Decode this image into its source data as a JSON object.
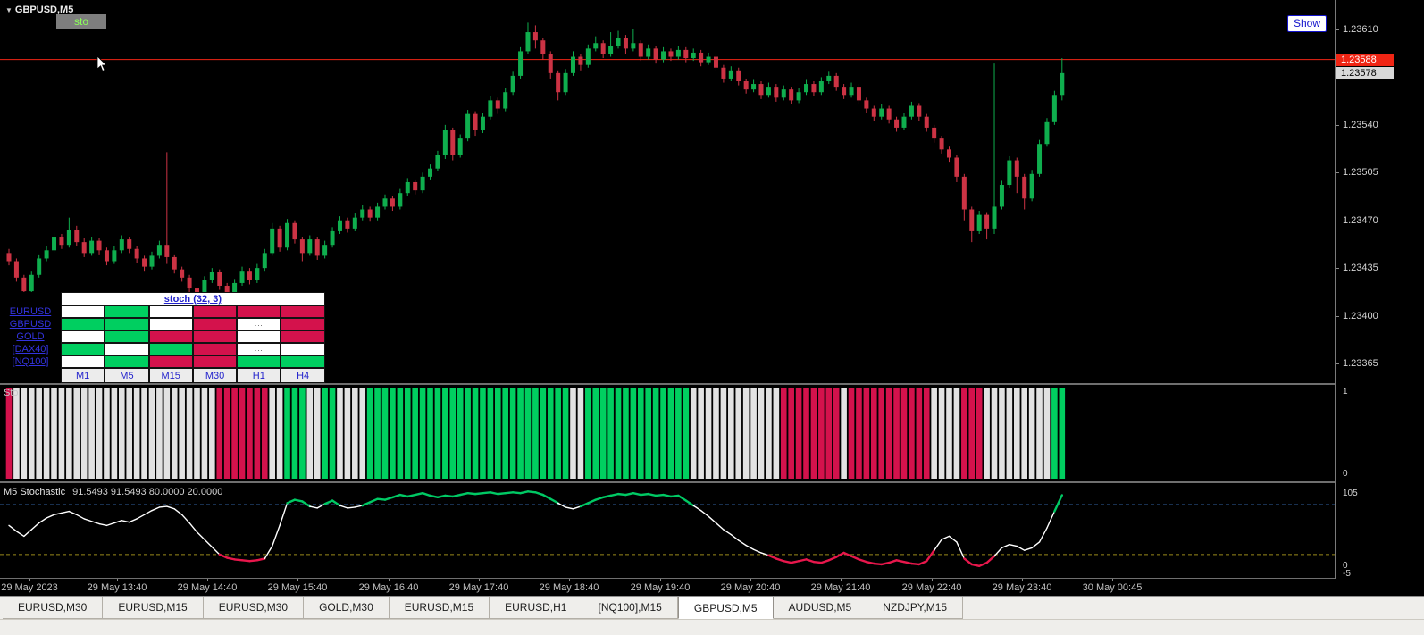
{
  "colors": {
    "bull": "#0fae4e",
    "bear": "#cc3344",
    "matrix_green": "#00cf60",
    "matrix_red": "#d4124c",
    "hist_white": "#e2e2e2",
    "line_green": "#00c964",
    "line_red": "#e8174c",
    "line_white": "#ffffff",
    "level_upper": "#3f7fd6",
    "level_lower": "#9a8a1a",
    "bid_line": "#f02514",
    "link_blue": "#2222cc"
  },
  "window": {
    "symbol_title": "GBPUSD,M5",
    "sto_button": "sto",
    "show_button": "Show"
  },
  "icons": {
    "dropdown_triangle": "▼"
  },
  "price_scale": {
    "bid_badge": "1.23588",
    "last_badge": "1.23578"
  },
  "matrix": {
    "title": "stoch (32, 3)",
    "row_labels": [
      "EURUSD",
      "GBPUSD",
      "GOLD",
      "[DAX40]",
      "[NQ100]"
    ],
    "col_labels": [
      "M1",
      "M5",
      "M15",
      "M30",
      "H1",
      "H4"
    ],
    "cells": [
      [
        "w",
        "g",
        "w",
        "r",
        "r",
        "r"
      ],
      [
        "g",
        "g",
        "w",
        "r",
        "w",
        "r"
      ],
      [
        "w",
        "g",
        "r",
        "r",
        "w",
        "r"
      ],
      [
        "g",
        "w",
        "g",
        "r",
        "w",
        "w"
      ],
      [
        "w",
        "g",
        "r",
        "r",
        "g",
        "g"
      ]
    ],
    "dots": [
      [
        1,
        4
      ],
      [
        2,
        4
      ],
      [
        3,
        4
      ]
    ],
    "dots_text": "..."
  },
  "subwindow1": {
    "label": "Sto",
    "scale": {
      "top": "1",
      "bottom": "0"
    }
  },
  "subwindow2": {
    "label": "M5 Stochastic",
    "values": "91.5493 91.5493 80.0000 20.0000",
    "scale": {
      "top": "105",
      "zero": "0",
      "bottom": "-5"
    }
  },
  "time_axis": [
    "29 May 2023",
    "29 May 13:40",
    "29 May 14:40",
    "29 May 15:40",
    "29 May 16:40",
    "29 May 17:40",
    "29 May 18:40",
    "29 May 19:40",
    "29 May 20:40",
    "29 May 21:40",
    "29 May 22:40",
    "29 May 23:40",
    "30 May 00:45"
  ],
  "tabs": {
    "items": [
      "EURUSD,M30",
      "EURUSD,M15",
      "EURUSD,M30",
      "GOLD,M30",
      "EURUSD,M15",
      "EURUSD,H1",
      "[NQ100],M15",
      "GBPUSD,M5",
      "AUDUSD,M5",
      "NZDJPY,M15"
    ],
    "active_index": 7
  },
  "chart_data": {
    "type": "candlestick",
    "symbol": "GBPUSD",
    "timeframe": "M5",
    "price_axis": {
      "base": 1.23,
      "ticks": [
        1.2361,
        1.23575,
        1.2354,
        1.23505,
        1.2347,
        1.23435,
        1.234,
        1.23365
      ]
    },
    "bid_line": 1.23588,
    "last_price": 1.23578,
    "candles_pips": [
      [
        44.6,
        44.9,
        43.7,
        44.0
      ],
      [
        44.0,
        44.2,
        42.5,
        42.8
      ],
      [
        42.8,
        43.0,
        41.2,
        41.8
      ],
      [
        41.8,
        43.3,
        41.6,
        43.0
      ],
      [
        43.0,
        44.5,
        42.8,
        44.2
      ],
      [
        44.2,
        45.1,
        44.0,
        44.8
      ],
      [
        44.8,
        46.1,
        44.6,
        45.8
      ],
      [
        45.8,
        46.0,
        44.9,
        45.2
      ],
      [
        45.2,
        47.2,
        45.0,
        46.3
      ],
      [
        46.3,
        46.6,
        45.1,
        45.4
      ],
      [
        45.4,
        45.7,
        44.3,
        44.6
      ],
      [
        44.6,
        45.8,
        44.4,
        45.5
      ],
      [
        45.5,
        45.7,
        44.5,
        44.8
      ],
      [
        44.8,
        45.0,
        43.7,
        44.0
      ],
      [
        44.0,
        45.1,
        43.8,
        44.8
      ],
      [
        44.8,
        45.9,
        44.6,
        45.6
      ],
      [
        45.6,
        45.8,
        44.6,
        44.9
      ],
      [
        44.9,
        45.1,
        43.9,
        44.2
      ],
      [
        44.2,
        44.4,
        43.3,
        43.6
      ],
      [
        43.6,
        44.7,
        43.4,
        44.4
      ],
      [
        44.4,
        45.5,
        44.2,
        45.2
      ],
      [
        45.2,
        52.0,
        43.8,
        44.3
      ],
      [
        44.3,
        44.5,
        43.1,
        43.4
      ],
      [
        43.4,
        43.6,
        42.5,
        42.8
      ],
      [
        42.8,
        43.0,
        41.0,
        42.0
      ],
      [
        42.0,
        42.3,
        41.2,
        41.6
      ],
      [
        41.6,
        42.9,
        41.4,
        42.6
      ],
      [
        42.6,
        43.5,
        42.4,
        43.2
      ],
      [
        43.2,
        43.4,
        41.9,
        42.2
      ],
      [
        42.2,
        42.4,
        41.1,
        41.5
      ],
      [
        41.5,
        42.7,
        41.3,
        42.4
      ],
      [
        42.4,
        43.6,
        42.2,
        43.3
      ],
      [
        43.3,
        43.5,
        42.3,
        42.6
      ],
      [
        42.6,
        43.8,
        42.4,
        43.5
      ],
      [
        43.5,
        44.9,
        43.3,
        44.6
      ],
      [
        44.6,
        46.8,
        44.4,
        46.4
      ],
      [
        46.4,
        46.6,
        44.7,
        45.0
      ],
      [
        45.0,
        47.1,
        44.8,
        46.8
      ],
      [
        46.8,
        47.0,
        45.3,
        45.6
      ],
      [
        45.6,
        45.8,
        44.0,
        44.6
      ],
      [
        44.6,
        45.9,
        44.4,
        45.6
      ],
      [
        45.6,
        45.8,
        44.1,
        44.4
      ],
      [
        44.4,
        45.5,
        44.2,
        45.2
      ],
      [
        45.2,
        46.5,
        45.0,
        46.2
      ],
      [
        46.2,
        47.3,
        46.0,
        47.0
      ],
      [
        47.0,
        47.2,
        46.1,
        46.4
      ],
      [
        46.4,
        47.5,
        46.2,
        47.2
      ],
      [
        47.2,
        48.1,
        47.0,
        47.8
      ],
      [
        47.8,
        48.0,
        46.9,
        47.2
      ],
      [
        47.2,
        48.3,
        47.0,
        48.0
      ],
      [
        48.0,
        48.9,
        47.8,
        48.6
      ],
      [
        48.6,
        48.8,
        47.7,
        48.0
      ],
      [
        48.0,
        49.3,
        47.8,
        49.0
      ],
      [
        49.0,
        50.1,
        48.8,
        49.8
      ],
      [
        49.8,
        50.0,
        48.9,
        49.2
      ],
      [
        49.2,
        50.5,
        49.0,
        50.2
      ],
      [
        50.2,
        51.1,
        50.0,
        50.8
      ],
      [
        50.8,
        52.1,
        50.6,
        51.8
      ],
      [
        51.8,
        54.0,
        51.5,
        53.6
      ],
      [
        53.6,
        53.8,
        51.4,
        51.8
      ],
      [
        51.8,
        53.3,
        51.6,
        53.0
      ],
      [
        53.0,
        55.1,
        52.8,
        54.8
      ],
      [
        54.8,
        55.0,
        53.2,
        53.6
      ],
      [
        53.6,
        54.9,
        53.4,
        54.6
      ],
      [
        54.6,
        56.1,
        54.4,
        55.8
      ],
      [
        55.8,
        56.0,
        54.8,
        55.2
      ],
      [
        55.2,
        56.7,
        55.0,
        56.4
      ],
      [
        56.4,
        57.9,
        56.2,
        57.6
      ],
      [
        57.6,
        59.7,
        57.4,
        59.4
      ],
      [
        59.4,
        61.5,
        59.2,
        60.8
      ],
      [
        60.8,
        61.3,
        59.6,
        60.2
      ],
      [
        60.2,
        60.4,
        58.8,
        59.2
      ],
      [
        59.2,
        59.4,
        57.4,
        57.8
      ],
      [
        57.8,
        58.0,
        55.8,
        56.4
      ],
      [
        56.4,
        58.1,
        56.2,
        57.8
      ],
      [
        57.8,
        59.4,
        57.6,
        59.0
      ],
      [
        59.0,
        59.2,
        58.0,
        58.4
      ],
      [
        58.4,
        59.9,
        58.2,
        59.6
      ],
      [
        59.6,
        60.5,
        59.4,
        60.0
      ],
      [
        60.0,
        60.2,
        58.9,
        59.2
      ],
      [
        59.2,
        60.8,
        59.0,
        59.8
      ],
      [
        59.8,
        60.9,
        59.6,
        60.4
      ],
      [
        60.4,
        60.6,
        59.2,
        59.6
      ],
      [
        59.6,
        61.0,
        59.4,
        60.0
      ],
      [
        60.0,
        60.2,
        58.7,
        59.0
      ],
      [
        59.0,
        59.9,
        58.8,
        59.6
      ],
      [
        59.6,
        59.8,
        58.5,
        58.8
      ],
      [
        58.8,
        59.7,
        58.6,
        59.4
      ],
      [
        59.4,
        59.6,
        58.7,
        59.0
      ],
      [
        59.0,
        59.8,
        58.8,
        59.5
      ],
      [
        59.5,
        59.7,
        58.6,
        58.9
      ],
      [
        58.9,
        59.6,
        58.7,
        59.3
      ],
      [
        59.3,
        59.5,
        58.3,
        58.6
      ],
      [
        58.6,
        59.3,
        58.4,
        59.0
      ],
      [
        59.0,
        59.2,
        57.9,
        58.2
      ],
      [
        58.2,
        58.4,
        57.1,
        57.4
      ],
      [
        57.4,
        58.3,
        57.2,
        58.0
      ],
      [
        58.0,
        58.2,
        56.9,
        57.2
      ],
      [
        57.2,
        57.4,
        56.3,
        56.6
      ],
      [
        56.6,
        57.3,
        56.4,
        57.0
      ],
      [
        57.0,
        57.2,
        55.9,
        56.2
      ],
      [
        56.2,
        57.1,
        56.0,
        56.8
      ],
      [
        56.8,
        57.0,
        55.7,
        56.0
      ],
      [
        56.0,
        56.9,
        55.8,
        56.6
      ],
      [
        56.6,
        56.8,
        55.5,
        55.8
      ],
      [
        55.8,
        56.7,
        55.6,
        56.4
      ],
      [
        56.4,
        57.3,
        56.2,
        57.0
      ],
      [
        57.0,
        57.2,
        56.1,
        56.4
      ],
      [
        56.4,
        57.5,
        56.2,
        57.2
      ],
      [
        57.2,
        57.9,
        57.0,
        57.6
      ],
      [
        57.6,
        57.8,
        56.5,
        56.8
      ],
      [
        56.8,
        57.0,
        55.9,
        56.2
      ],
      [
        56.2,
        57.1,
        56.0,
        56.8
      ],
      [
        56.8,
        57.0,
        55.5,
        55.8
      ],
      [
        55.8,
        56.0,
        54.9,
        55.2
      ],
      [
        55.2,
        55.4,
        54.3,
        54.6
      ],
      [
        54.6,
        55.5,
        54.4,
        55.2
      ],
      [
        55.2,
        55.4,
        54.1,
        54.4
      ],
      [
        54.4,
        54.6,
        53.5,
        53.8
      ],
      [
        53.8,
        54.9,
        53.6,
        54.6
      ],
      [
        54.6,
        55.7,
        54.4,
        55.4
      ],
      [
        55.4,
        55.6,
        54.3,
        54.6
      ],
      [
        54.6,
        54.8,
        53.5,
        53.8
      ],
      [
        53.8,
        54.0,
        52.7,
        53.0
      ],
      [
        53.0,
        53.2,
        51.9,
        52.2
      ],
      [
        52.2,
        52.4,
        51.3,
        51.6
      ],
      [
        51.6,
        51.8,
        49.8,
        50.2
      ],
      [
        50.2,
        50.4,
        47.0,
        47.8
      ],
      [
        47.8,
        48.0,
        45.4,
        46.2
      ],
      [
        46.2,
        47.7,
        46.0,
        47.4
      ],
      [
        47.4,
        47.6,
        45.6,
        46.4
      ],
      [
        46.4,
        58.5,
        46.0,
        48.0
      ],
      [
        48.0,
        49.9,
        47.8,
        49.6
      ],
      [
        49.6,
        51.7,
        49.4,
        51.4
      ],
      [
        51.4,
        51.6,
        49.0,
        50.2
      ],
      [
        50.2,
        50.4,
        47.8,
        48.6
      ],
      [
        48.6,
        50.7,
        48.4,
        50.4
      ],
      [
        50.4,
        52.9,
        50.2,
        52.6
      ],
      [
        52.6,
        54.5,
        52.4,
        54.2
      ],
      [
        54.2,
        56.5,
        54.0,
        56.2
      ],
      [
        56.2,
        58.9,
        55.8,
        57.8
      ]
    ],
    "histogram_runs": [
      [
        "r",
        1
      ],
      [
        "w",
        27
      ],
      [
        "r",
        7
      ],
      [
        "w",
        2
      ],
      [
        "g",
        3
      ],
      [
        "w",
        2
      ],
      [
        "g",
        2
      ],
      [
        "w",
        4
      ],
      [
        "g",
        27
      ],
      [
        "w",
        2
      ],
      [
        "g",
        14
      ],
      [
        "w",
        12
      ],
      [
        "r",
        8
      ],
      [
        "w",
        1
      ],
      [
        "r",
        11
      ],
      [
        "w",
        4
      ],
      [
        "r",
        3
      ],
      [
        "w",
        9
      ],
      [
        "g",
        2
      ]
    ],
    "histogram_scale": [
      0,
      1
    ],
    "stochastic": {
      "upper_level": 80,
      "lower_level": 20,
      "current": 91.5493,
      "values": [
        55,
        48,
        42,
        50,
        58,
        64,
        68,
        70,
        72,
        68,
        63,
        60,
        57,
        55,
        58,
        61,
        59,
        63,
        68,
        73,
        77,
        78,
        75,
        68,
        58,
        47,
        38,
        29,
        20,
        16,
        14,
        13,
        12,
        13,
        15,
        30,
        55,
        82,
        86,
        84,
        78,
        76,
        81,
        85,
        79,
        76,
        77,
        79,
        83,
        87,
        86,
        89,
        92,
        90,
        92,
        94,
        91,
        89,
        91,
        90,
        92,
        94,
        93,
        94,
        95,
        93,
        94,
        95,
        94,
        96,
        95,
        92,
        87,
        82,
        77,
        75,
        78,
        82,
        86,
        89,
        91,
        93,
        92,
        94,
        92,
        93,
        91,
        92,
        90,
        91,
        85,
        79,
        73,
        66,
        58,
        50,
        44,
        37,
        31,
        26,
        22,
        19,
        15,
        12,
        10,
        12,
        14,
        11,
        10,
        13,
        17,
        22,
        18,
        14,
        11,
        9,
        8,
        10,
        13,
        11,
        9,
        8,
        12,
        25,
        38,
        42,
        35,
        15,
        8,
        6,
        10,
        18,
        28,
        32,
        30,
        25,
        28,
        35,
        52,
        72,
        91.5
      ]
    }
  }
}
